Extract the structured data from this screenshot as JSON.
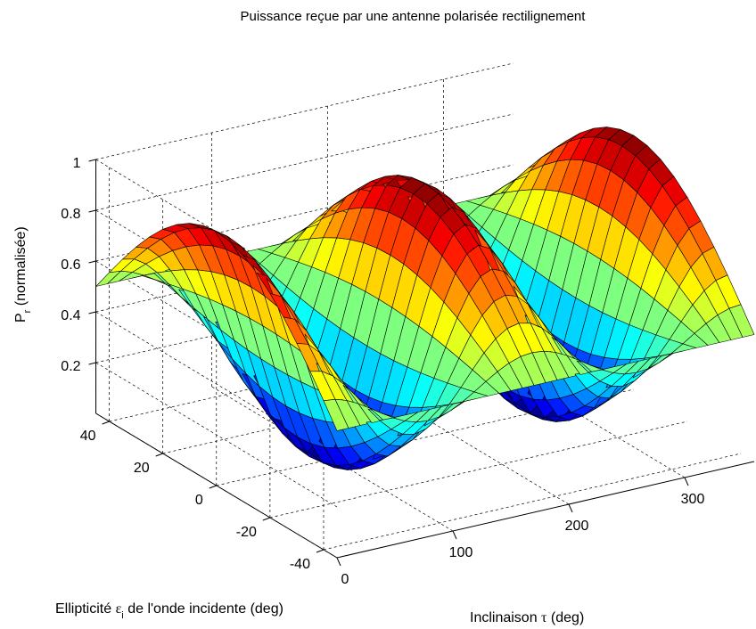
{
  "chart_data": {
    "type": "surface",
    "title": "Puissance reçue par une antenne polarisée rectilignement",
    "xlabel": {
      "prefix": "Inclinaison ",
      "symbol": "τ",
      "suffix": " (deg)"
    },
    "ylabel": {
      "prefix": "Ellipticité ",
      "symbol": "ε",
      "sub": "i",
      "suffix": " de l'onde incidente (deg)"
    },
    "zlabel": {
      "main": "P",
      "sub": "r",
      "suffix": " (normalisée)"
    },
    "x_range": [
      0,
      360
    ],
    "y_range": [
      -45,
      45
    ],
    "z_range": [
      0,
      1
    ],
    "x_ticks": [
      "0",
      "100",
      "200",
      "300"
    ],
    "y_ticks": [
      "-40",
      "-20",
      "0",
      "20",
      "40"
    ],
    "z_ticks": [
      "0.2",
      "0.4",
      "0.6",
      "0.8",
      "1"
    ],
    "grid": true,
    "colormap": "jet",
    "surface": {
      "formula": "Pr = (1 + cos(2*epsilon_i)*cos(2*tau)) / 2",
      "x_samples": 37,
      "y_samples": 19,
      "peaks": [
        {
          "tau": 0,
          "epsilon_i": 0,
          "Pr": 1
        },
        {
          "tau": 180,
          "epsilon_i": 0,
          "Pr": 1
        },
        {
          "tau": 360,
          "epsilon_i": 0,
          "Pr": 1
        }
      ],
      "troughs": [
        {
          "tau": 90,
          "epsilon_i": 0,
          "Pr": 0
        },
        {
          "tau": 270,
          "epsilon_i": 0,
          "Pr": 0
        }
      ],
      "edge_value": {
        "epsilon_i": [
          -45,
          45
        ],
        "Pr": 0.5
      }
    }
  }
}
